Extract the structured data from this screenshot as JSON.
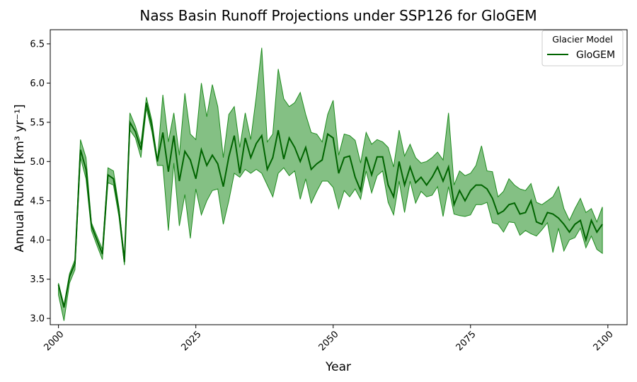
{
  "chart_data": {
    "type": "line",
    "title": "Nass Basin Runoff Projections under SSP126 for GloGEM",
    "xlabel": "Year",
    "ylabel": "Annual Runoff [km³ yr⁻¹]",
    "xlim": [
      1998.5,
      2103.5
    ],
    "ylim": [
      2.92,
      6.68
    ],
    "x_ticks": [
      2000,
      2025,
      2050,
      2075,
      2100
    ],
    "y_ticks": [
      3.0,
      3.5,
      4.0,
      4.5,
      5.0,
      5.5,
      6.0,
      6.5
    ],
    "x_tick_labels": [
      "2000",
      "2025",
      "2050",
      "2075",
      "2100"
    ],
    "y_tick_labels": [
      "3.0",
      "3.5",
      "4.0",
      "4.5",
      "5.0",
      "5.5",
      "6.0",
      "6.5"
    ],
    "grid": false,
    "legend": {
      "title": "Glacier Model",
      "position": "top-right"
    },
    "colors": {
      "line": "#006400",
      "band": "#1f8c1f",
      "band_opacity": 0.55
    },
    "x": [
      2000,
      2001,
      2002,
      2003,
      2004,
      2005,
      2006,
      2007,
      2008,
      2009,
      2010,
      2011,
      2012,
      2013,
      2014,
      2015,
      2016,
      2017,
      2018,
      2019,
      2020,
      2021,
      2022,
      2023,
      2024,
      2025,
      2026,
      2027,
      2028,
      2029,
      2030,
      2031,
      2032,
      2033,
      2034,
      2035,
      2036,
      2037,
      2038,
      2039,
      2040,
      2041,
      2042,
      2043,
      2044,
      2045,
      2046,
      2047,
      2048,
      2049,
      2050,
      2051,
      2052,
      2053,
      2054,
      2055,
      2056,
      2057,
      2058,
      2059,
      2060,
      2061,
      2062,
      2063,
      2064,
      2065,
      2066,
      2067,
      2068,
      2069,
      2070,
      2071,
      2072,
      2073,
      2074,
      2075,
      2076,
      2077,
      2078,
      2079,
      2080,
      2081,
      2082,
      2083,
      2084,
      2085,
      2086,
      2087,
      2088,
      2089,
      2090,
      2091,
      2092,
      2093,
      2094,
      2095,
      2096,
      2097,
      2098,
      2099
    ],
    "series": [
      {
        "name": "GloGEM",
        "values": [
          3.43,
          3.14,
          3.53,
          3.7,
          5.15,
          4.9,
          4.18,
          4.0,
          3.82,
          4.83,
          4.78,
          4.38,
          3.72,
          5.5,
          5.38,
          5.15,
          5.75,
          5.45,
          5.0,
          5.37,
          4.87,
          5.33,
          4.75,
          5.13,
          5.02,
          4.78,
          5.15,
          4.95,
          5.08,
          4.97,
          4.68,
          5.06,
          5.33,
          4.85,
          5.3,
          5.05,
          5.23,
          5.33,
          4.9,
          5.05,
          5.4,
          5.03,
          5.3,
          5.18,
          5.0,
          5.18,
          4.9,
          4.97,
          5.02,
          5.35,
          5.3,
          4.85,
          5.05,
          5.07,
          4.8,
          4.63,
          5.06,
          4.83,
          5.06,
          5.06,
          4.7,
          4.55,
          5.0,
          4.7,
          4.93,
          4.73,
          4.8,
          4.7,
          4.8,
          4.93,
          4.75,
          4.93,
          4.45,
          4.63,
          4.5,
          4.63,
          4.7,
          4.7,
          4.65,
          4.53,
          4.33,
          4.37,
          4.45,
          4.47,
          4.33,
          4.35,
          4.5,
          4.23,
          4.2,
          4.35,
          4.33,
          4.28,
          4.2,
          4.1,
          4.2,
          4.25,
          4.0,
          4.25,
          4.1,
          4.2
        ]
      }
    ],
    "band": {
      "upper": [
        3.45,
        3.17,
        3.57,
        3.75,
        5.28,
        5.05,
        4.22,
        4.05,
        3.88,
        4.92,
        4.88,
        4.42,
        3.78,
        5.62,
        5.45,
        5.22,
        5.82,
        5.52,
        5.02,
        5.85,
        5.25,
        5.62,
        5.08,
        5.87,
        5.35,
        5.28,
        6.0,
        5.57,
        5.98,
        5.7,
        5.05,
        5.6,
        5.7,
        5.18,
        5.62,
        5.28,
        5.83,
        6.45,
        5.25,
        5.35,
        6.18,
        5.8,
        5.7,
        5.75,
        5.88,
        5.6,
        5.37,
        5.35,
        5.25,
        5.6,
        5.78,
        5.08,
        5.35,
        5.33,
        5.27,
        4.98,
        5.37,
        5.22,
        5.28,
        5.25,
        5.18,
        4.93,
        5.4,
        5.07,
        5.22,
        5.05,
        4.98,
        5.0,
        5.05,
        5.12,
        5.02,
        5.62,
        4.7,
        4.88,
        4.82,
        4.85,
        4.95,
        5.2,
        4.88,
        4.87,
        4.55,
        4.62,
        4.78,
        4.7,
        4.65,
        4.63,
        4.72,
        4.48,
        4.45,
        4.5,
        4.55,
        4.68,
        4.4,
        4.25,
        4.4,
        4.53,
        4.35,
        4.4,
        4.23,
        4.42
      ],
      "lower": [
        3.3,
        2.97,
        3.45,
        3.62,
        5.05,
        4.78,
        4.12,
        3.93,
        3.75,
        4.73,
        4.7,
        4.3,
        3.68,
        5.4,
        5.3,
        5.05,
        5.68,
        5.38,
        4.95,
        4.95,
        4.12,
        4.98,
        4.18,
        4.58,
        4.02,
        4.65,
        4.32,
        4.5,
        4.63,
        4.65,
        4.2,
        4.5,
        4.85,
        4.8,
        4.9,
        4.85,
        4.9,
        4.85,
        4.7,
        4.55,
        4.85,
        4.92,
        4.82,
        4.88,
        4.52,
        4.78,
        4.47,
        4.62,
        4.75,
        4.75,
        4.67,
        4.4,
        4.63,
        4.55,
        4.65,
        4.52,
        4.88,
        4.6,
        4.82,
        4.88,
        4.48,
        4.32,
        4.75,
        4.35,
        4.75,
        4.47,
        4.62,
        4.55,
        4.57,
        4.68,
        4.3,
        4.68,
        4.33,
        4.31,
        4.3,
        4.32,
        4.45,
        4.45,
        4.48,
        4.22,
        4.2,
        4.1,
        4.23,
        4.22,
        4.06,
        4.12,
        4.08,
        4.05,
        4.13,
        4.22,
        3.84,
        4.15,
        3.86,
        4.0,
        4.03,
        4.15,
        3.9,
        4.05,
        3.88,
        3.83
      ]
    }
  }
}
